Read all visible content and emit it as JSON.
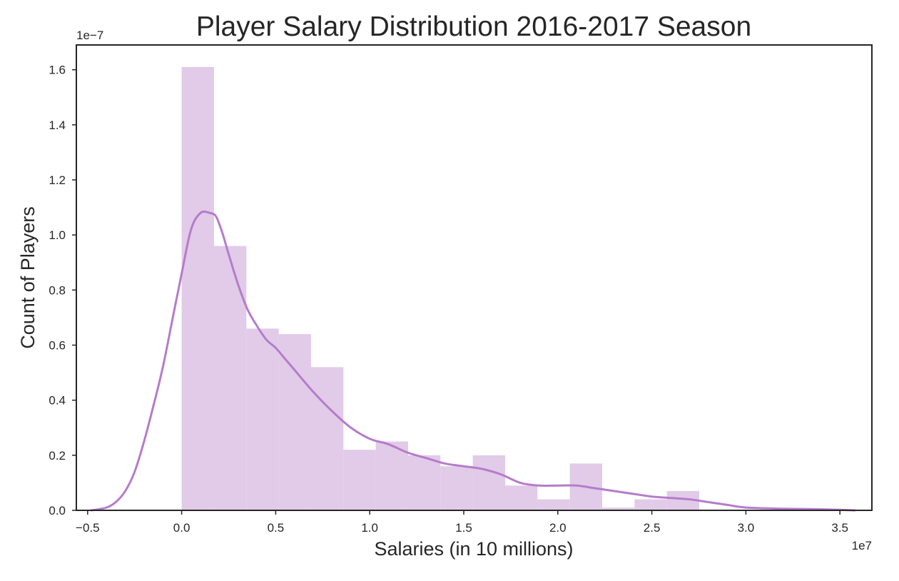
{
  "chart_data": {
    "type": "bar",
    "title": "Player Salary Distribution 2016-2017 Season",
    "xlabel": "Salaries (in 10 millions)",
    "ylabel": "Count of Players",
    "x_offset_label": "1e7",
    "y_offset_label": "1e−7",
    "xlim": [
      -0.56,
      3.67
    ],
    "ylim": [
      0,
      1.69
    ],
    "xticks": [
      -0.5,
      0.0,
      0.5,
      1.0,
      1.5,
      2.0,
      2.5,
      3.0,
      3.5
    ],
    "xtick_labels": [
      "−0.5",
      "0.0",
      "0.5",
      "1.0",
      "1.5",
      "2.0",
      "2.5",
      "3.0",
      "3.5"
    ],
    "yticks": [
      0.0,
      0.2,
      0.4,
      0.6,
      0.8,
      1.0,
      1.2,
      1.4,
      1.6
    ],
    "ytick_labels": [
      "0.0",
      "0.2",
      "0.4",
      "0.6",
      "0.8",
      "1.0",
      "1.2",
      "1.4",
      "1.6"
    ],
    "grid": false,
    "bins": [
      {
        "x0": 0.0,
        "x1": 0.172,
        "value": 1.61
      },
      {
        "x0": 0.172,
        "x1": 0.344,
        "value": 0.96
      },
      {
        "x0": 0.344,
        "x1": 0.516,
        "value": 0.66
      },
      {
        "x0": 0.516,
        "x1": 0.688,
        "value": 0.64
      },
      {
        "x0": 0.688,
        "x1": 0.86,
        "value": 0.52
      },
      {
        "x0": 0.86,
        "x1": 1.032,
        "value": 0.22
      },
      {
        "x0": 1.032,
        "x1": 1.204,
        "value": 0.25
      },
      {
        "x0": 1.204,
        "x1": 1.376,
        "value": 0.2
      },
      {
        "x0": 1.376,
        "x1": 1.548,
        "value": 0.16
      },
      {
        "x0": 1.548,
        "x1": 1.72,
        "value": 0.2
      },
      {
        "x0": 1.72,
        "x1": 1.892,
        "value": 0.09
      },
      {
        "x0": 1.892,
        "x1": 2.064,
        "value": 0.04
      },
      {
        "x0": 2.064,
        "x1": 2.236,
        "value": 0.17
      },
      {
        "x0": 2.236,
        "x1": 2.408,
        "value": 0.01
      },
      {
        "x0": 2.408,
        "x1": 2.58,
        "value": 0.04
      },
      {
        "x0": 2.58,
        "x1": 2.752,
        "value": 0.07
      }
    ],
    "kde": {
      "x": [
        -0.48,
        -0.4,
        -0.35,
        -0.3,
        -0.25,
        -0.2,
        -0.15,
        -0.1,
        -0.05,
        0.0,
        0.05,
        0.1,
        0.15,
        0.18,
        0.2,
        0.22,
        0.25,
        0.3,
        0.35,
        0.4,
        0.45,
        0.5,
        0.55,
        0.6,
        0.7,
        0.8,
        0.9,
        1.0,
        1.1,
        1.2,
        1.3,
        1.4,
        1.5,
        1.6,
        1.7,
        1.8,
        1.9,
        2.0,
        2.1,
        2.2,
        2.3,
        2.4,
        2.5,
        2.6,
        2.7,
        2.8,
        2.9,
        3.0,
        3.2,
        3.4,
        3.58
      ],
      "y": [
        0.0,
        0.01,
        0.03,
        0.07,
        0.14,
        0.25,
        0.38,
        0.52,
        0.69,
        0.86,
        1.02,
        1.08,
        1.08,
        1.07,
        1.04,
        1.0,
        0.93,
        0.82,
        0.73,
        0.67,
        0.62,
        0.59,
        0.55,
        0.51,
        0.43,
        0.36,
        0.3,
        0.26,
        0.24,
        0.21,
        0.19,
        0.17,
        0.16,
        0.15,
        0.13,
        0.1,
        0.09,
        0.09,
        0.09,
        0.08,
        0.07,
        0.06,
        0.05,
        0.045,
        0.04,
        0.03,
        0.02,
        0.01,
        0.006,
        0.004,
        0.0
      ]
    },
    "colors": {
      "bar_fill": "#e1cbe8",
      "kde_line": "#b57cca",
      "frame": "#262626",
      "text": "#262626"
    }
  }
}
